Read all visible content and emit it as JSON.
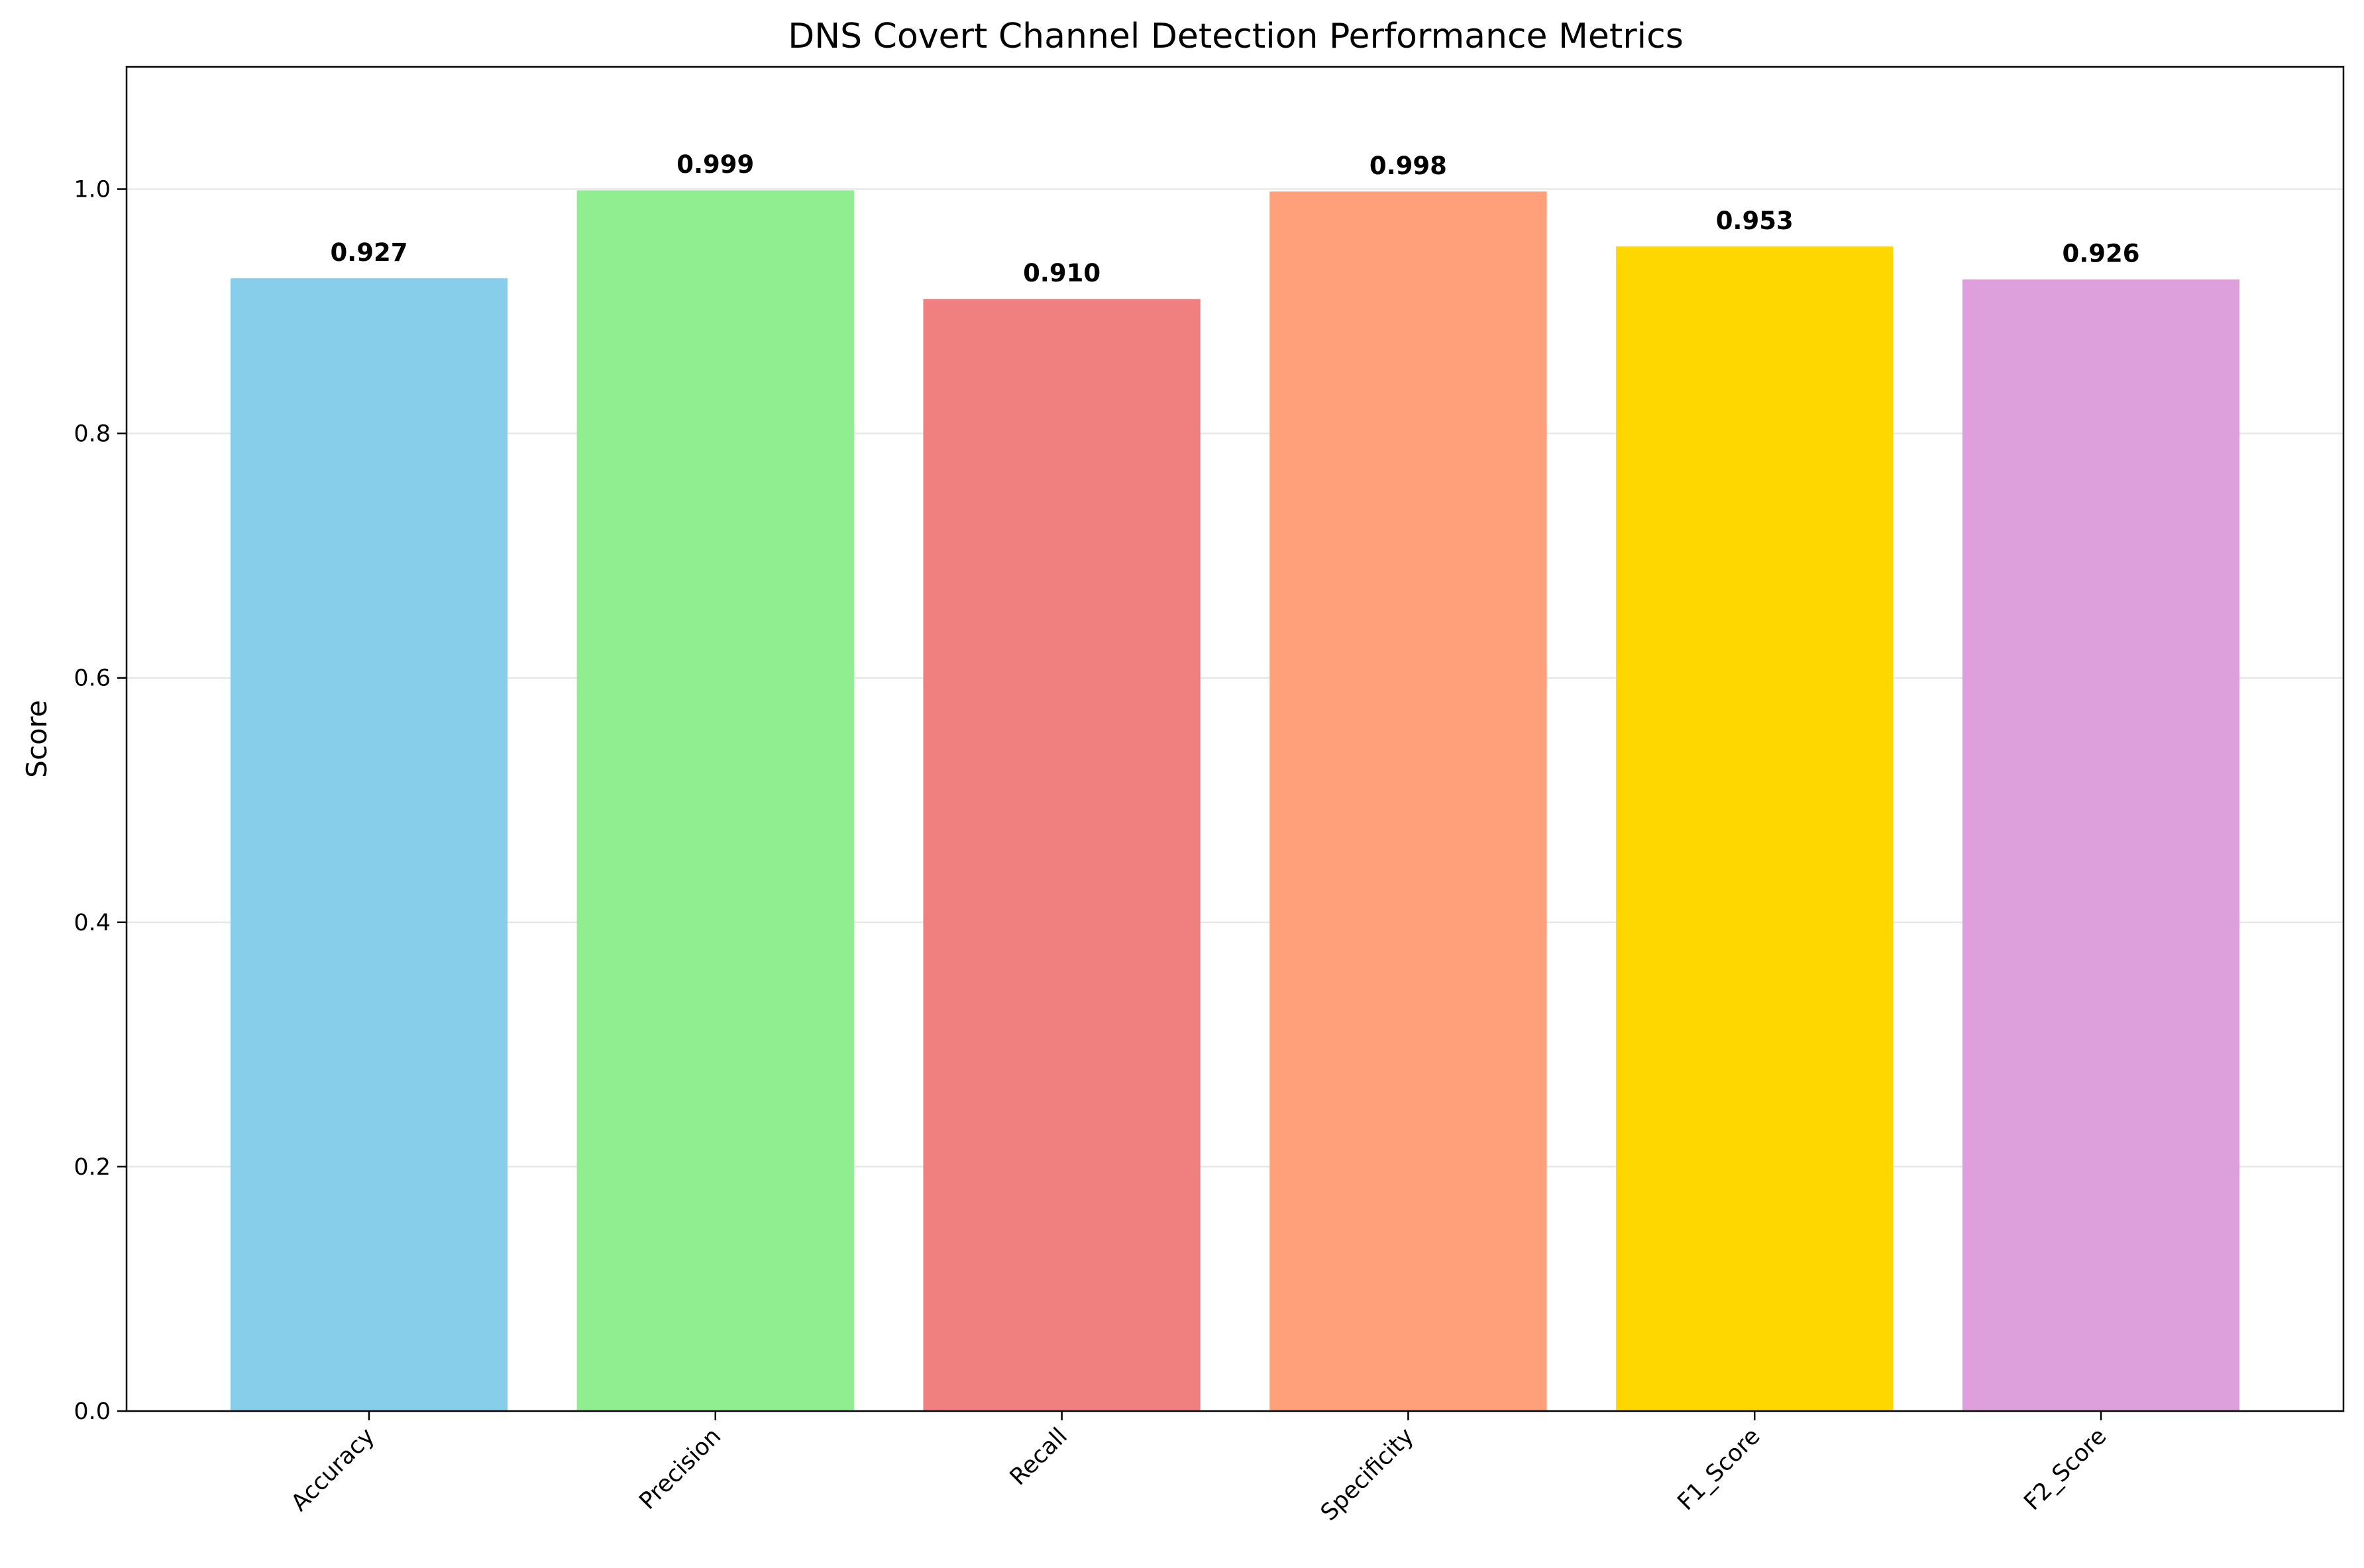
{
  "chart_data": {
    "type": "bar",
    "title": "DNS Covert Channel Detection Performance Metrics",
    "xlabel": "",
    "ylabel": "Score",
    "categories": [
      "Accuracy",
      "Precision",
      "Recall",
      "Specificity",
      "F1_Score",
      "F2_Score"
    ],
    "values": [
      0.927,
      0.999,
      0.91,
      0.998,
      0.953,
      0.926
    ],
    "value_labels": [
      "0.927",
      "0.999",
      "0.910",
      "0.998",
      "0.953",
      "0.926"
    ],
    "colors": [
      "#87CEEB",
      "#90EE90",
      "#F08080",
      "#FFA07A",
      "#FFD700",
      "#DDA0DD"
    ],
    "ylim": [
      0,
      1.1
    ],
    "yticks": [
      0.0,
      0.2,
      0.4,
      0.6,
      0.8,
      1.0
    ],
    "ytick_labels": [
      "0.0",
      "0.2",
      "0.4",
      "0.6",
      "0.8",
      "1.0"
    ],
    "grid": "y",
    "xtick_rotation": 45
  }
}
